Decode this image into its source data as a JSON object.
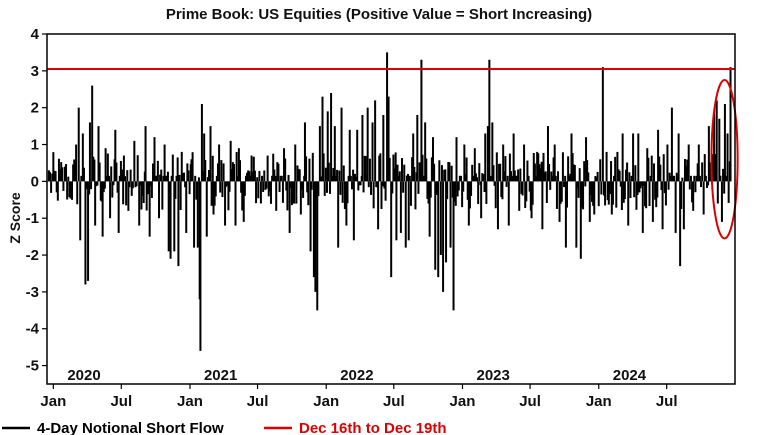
{
  "chart_data": {
    "type": "bar",
    "title": "Prime Book: US Equities (Positive Value = Short Increasing)",
    "ylabel": "Z Score",
    "ylim": [
      -5.5,
      4
    ],
    "yticks": [
      "4",
      "3",
      "2",
      "1",
      "0",
      "-1",
      "-2",
      "-3",
      "-4",
      "-5"
    ],
    "xrange": [
      "2019-12-15",
      "2024-12-31"
    ],
    "month_ticks": [
      {
        "date": "2020-01-01",
        "label": "Jan"
      },
      {
        "date": "2020-07-01",
        "label": "Jul"
      },
      {
        "date": "2021-01-01",
        "label": "Jan"
      },
      {
        "date": "2021-07-01",
        "label": "Jul"
      },
      {
        "date": "2022-01-01",
        "label": "Jan"
      },
      {
        "date": "2022-07-01",
        "label": "Jul"
      },
      {
        "date": "2023-01-01",
        "label": "Jan"
      },
      {
        "date": "2023-07-01",
        "label": "Jul"
      },
      {
        "date": "2024-01-01",
        "label": "Jan"
      },
      {
        "date": "2024-07-01",
        "label": "Jul"
      }
    ],
    "year_labels": [
      {
        "date": "2020-01-01",
        "label": "2020"
      },
      {
        "date": "2021-01-01",
        "label": "2021"
      },
      {
        "date": "2022-01-01",
        "label": "2022"
      },
      {
        "date": "2023-01-01",
        "label": "2023"
      },
      {
        "date": "2024-01-01",
        "label": "2024"
      }
    ],
    "series": [
      {
        "name": "4-Day Notional Short Flow",
        "color": "#000000",
        "points": [
          [
            "2019-12-20",
            0.3
          ],
          [
            "2020-01-10",
            -0.3
          ],
          [
            "2020-02-01",
            0.4
          ],
          [
            "2020-02-20",
            -0.5
          ],
          [
            "2020-03-02",
            1.0
          ],
          [
            "2020-03-09",
            2.0
          ],
          [
            "2020-03-13",
            -1.6
          ],
          [
            "2020-03-20",
            1.3
          ],
          [
            "2020-03-27",
            -2.8
          ],
          [
            "2020-04-03",
            -2.7
          ],
          [
            "2020-04-08",
            1.6
          ],
          [
            "2020-04-14",
            2.6
          ],
          [
            "2020-04-22",
            -1.2
          ],
          [
            "2020-05-01",
            1.5
          ],
          [
            "2020-05-12",
            -1.5
          ],
          [
            "2020-05-20",
            0.9
          ],
          [
            "2020-06-01",
            -1.0
          ],
          [
            "2020-06-15",
            1.4
          ],
          [
            "2020-06-24",
            -1.4
          ],
          [
            "2020-07-08",
            0.7
          ],
          [
            "2020-07-20",
            -0.8
          ],
          [
            "2020-08-05",
            1.1
          ],
          [
            "2020-08-18",
            -1.2
          ],
          [
            "2020-09-04",
            1.5
          ],
          [
            "2020-09-15",
            -1.5
          ],
          [
            "2020-09-28",
            1.2
          ],
          [
            "2020-10-10",
            -1.0
          ],
          [
            "2020-10-25",
            1.0
          ],
          [
            "2020-11-05",
            -1.9
          ],
          [
            "2020-11-10",
            -2.1
          ],
          [
            "2020-11-20",
            -1.9
          ],
          [
            "2020-12-01",
            -2.3
          ],
          [
            "2020-12-10",
            0.8
          ],
          [
            "2020-12-22",
            -1.4
          ],
          [
            "2021-01-05",
            0.6
          ],
          [
            "2021-01-12",
            -1.8
          ],
          [
            "2021-01-22",
            -1.8
          ],
          [
            "2021-01-27",
            -3.2
          ],
          [
            "2021-01-29",
            -4.6
          ],
          [
            "2021-02-02",
            2.1
          ],
          [
            "2021-02-08",
            1.3
          ],
          [
            "2021-02-15",
            -1.5
          ],
          [
            "2021-02-25",
            1.5
          ],
          [
            "2021-03-05",
            -0.9
          ],
          [
            "2021-03-20",
            1.0
          ],
          [
            "2021-04-05",
            -1.2
          ],
          [
            "2021-04-20",
            1.1
          ],
          [
            "2021-05-03",
            -1.2
          ],
          [
            "2021-05-12",
            0.9
          ],
          [
            "2021-05-25",
            -1.1
          ],
          [
            "2021-06-15",
            0.7
          ],
          [
            "2021-07-10",
            -0.6
          ],
          [
            "2021-07-28",
            0.7
          ],
          [
            "2021-08-20",
            -0.8
          ],
          [
            "2021-09-10",
            0.9
          ],
          [
            "2021-09-25",
            -1.4
          ],
          [
            "2021-10-10",
            1.0
          ],
          [
            "2021-10-25",
            -0.9
          ],
          [
            "2021-11-05",
            1.6
          ],
          [
            "2021-11-20",
            -1.9
          ],
          [
            "2021-11-29",
            -2.6
          ],
          [
            "2021-12-03",
            -3.0
          ],
          [
            "2021-12-08",
            -3.5
          ],
          [
            "2021-12-15",
            1.5
          ],
          [
            "2021-12-22",
            2.3
          ],
          [
            "2022-01-05",
            1.9
          ],
          [
            "2022-01-14",
            2.4
          ],
          [
            "2022-01-24",
            1.5
          ],
          [
            "2022-02-02",
            -1.8
          ],
          [
            "2022-02-11",
            2.0
          ],
          [
            "2022-02-24",
            -1.2
          ],
          [
            "2022-03-05",
            1.4
          ],
          [
            "2022-03-16",
            -1.6
          ],
          [
            "2022-03-25",
            1.4
          ],
          [
            "2022-04-08",
            1.8
          ],
          [
            "2022-04-22",
            2.0
          ],
          [
            "2022-05-05",
            1.6
          ],
          [
            "2022-05-12",
            2.2
          ],
          [
            "2022-05-20",
            -1.3
          ],
          [
            "2022-06-03",
            1.8
          ],
          [
            "2022-06-13",
            3.5
          ],
          [
            "2022-06-17",
            2.3
          ],
          [
            "2022-06-24",
            -2.6
          ],
          [
            "2022-07-08",
            -1.6
          ],
          [
            "2022-07-20",
            -1.4
          ],
          [
            "2022-08-02",
            -1.8
          ],
          [
            "2022-08-10",
            -1.6
          ],
          [
            "2022-08-22",
            1.3
          ],
          [
            "2022-09-02",
            1.8
          ],
          [
            "2022-09-13",
            3.3
          ],
          [
            "2022-09-23",
            1.6
          ],
          [
            "2022-10-05",
            -1.5
          ],
          [
            "2022-10-14",
            1.2
          ],
          [
            "2022-10-20",
            -2.4
          ],
          [
            "2022-10-28",
            -2.6
          ],
          [
            "2022-11-04",
            -2.0
          ],
          [
            "2022-11-10",
            -3.0
          ],
          [
            "2022-11-18",
            -2.2
          ],
          [
            "2022-11-30",
            -1.8
          ],
          [
            "2022-12-08",
            -3.5
          ],
          [
            "2022-12-16",
            1.2
          ],
          [
            "2023-01-06",
            1.0
          ],
          [
            "2023-01-18",
            -1.2
          ],
          [
            "2023-02-03",
            0.9
          ],
          [
            "2023-02-20",
            -1.0
          ],
          [
            "2023-03-03",
            1.3
          ],
          [
            "2023-03-10",
            1.5
          ],
          [
            "2023-03-14",
            3.3
          ],
          [
            "2023-03-22",
            1.6
          ],
          [
            "2023-04-06",
            -1.3
          ],
          [
            "2023-04-20",
            1.0
          ],
          [
            "2023-05-05",
            -1.2
          ],
          [
            "2023-05-18",
            1.3
          ],
          [
            "2023-06-02",
            -0.8
          ],
          [
            "2023-06-15",
            1.0
          ],
          [
            "2023-07-05",
            -1.0
          ],
          [
            "2023-07-20",
            0.8
          ],
          [
            "2023-08-03",
            -1.3
          ],
          [
            "2023-08-18",
            1.5
          ],
          [
            "2023-09-05",
            1.0
          ],
          [
            "2023-09-18",
            -1.1
          ],
          [
            "2023-10-05",
            -1.8
          ],
          [
            "2023-10-20",
            1.3
          ],
          [
            "2023-11-02",
            -1.8
          ],
          [
            "2023-11-14",
            -2.1
          ],
          [
            "2023-11-28",
            1.2
          ],
          [
            "2023-12-08",
            -1.1
          ],
          [
            "2023-12-20",
            -0.9
          ],
          [
            "2024-01-05",
            0.6
          ],
          [
            "2024-01-12",
            3.1
          ],
          [
            "2024-01-22",
            0.8
          ],
          [
            "2024-02-05",
            -0.9
          ],
          [
            "2024-02-20",
            0.8
          ],
          [
            "2024-03-05",
            1.3
          ],
          [
            "2024-03-20",
            -1.2
          ],
          [
            "2024-04-02",
            1.3
          ],
          [
            "2024-04-16",
            1.3
          ],
          [
            "2024-04-28",
            -1.4
          ],
          [
            "2024-05-10",
            0.9
          ],
          [
            "2024-05-25",
            -1.1
          ],
          [
            "2024-06-08",
            1.4
          ],
          [
            "2024-06-20",
            -1.3
          ],
          [
            "2024-07-03",
            1.0
          ],
          [
            "2024-07-15",
            2.0
          ],
          [
            "2024-07-25",
            -1.4
          ],
          [
            "2024-08-02",
            1.3
          ],
          [
            "2024-08-06",
            -2.3
          ],
          [
            "2024-08-16",
            -1.3
          ],
          [
            "2024-08-29",
            1.0
          ],
          [
            "2024-09-10",
            -0.8
          ],
          [
            "2024-09-25",
            1.0
          ],
          [
            "2024-10-08",
            -0.9
          ],
          [
            "2024-10-22",
            1.5
          ],
          [
            "2024-11-05",
            1.9
          ],
          [
            "2024-11-12",
            2.2
          ],
          [
            "2024-11-19",
            1.7
          ],
          [
            "2024-11-26",
            -1.1
          ],
          [
            "2024-12-04",
            2.1
          ],
          [
            "2024-12-11",
            1.3
          ],
          [
            "2024-12-19",
            3.1
          ]
        ]
      }
    ],
    "reference_lines": [
      {
        "name": "Dec 16th to Dec 19th",
        "value": 3.05,
        "color": "#dd0000"
      }
    ],
    "highlight": {
      "shape": "ellipse",
      "color": "#dd0000",
      "date_start": "2024-11-14",
      "date_end": "2024-12-22"
    },
    "legend": [
      {
        "label": "4-Day Notional Short Flow",
        "color": "#000000"
      },
      {
        "label": "Dec 16th to Dec 19th",
        "color": "#dd0000"
      }
    ],
    "legend_position": "bottom",
    "grid": false
  }
}
